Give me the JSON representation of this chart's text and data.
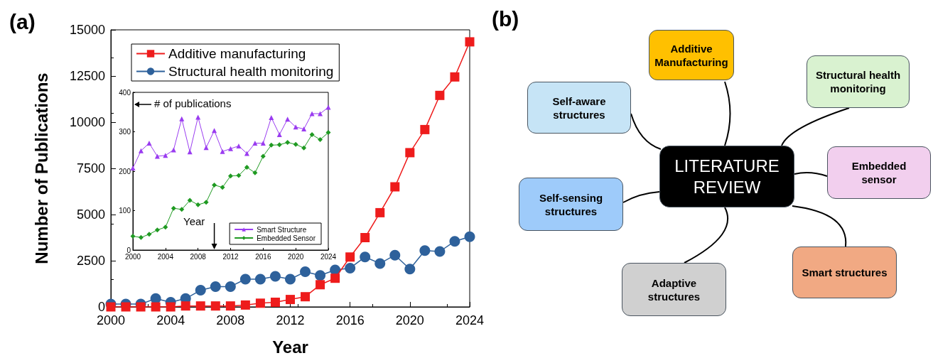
{
  "chart_data": [
    {
      "type": "line",
      "title": "(a)",
      "xlabel": "Year",
      "ylabel": "Number of Publications",
      "x": [
        2000,
        2001,
        2002,
        2003,
        2004,
        2005,
        2006,
        2007,
        2008,
        2009,
        2010,
        2011,
        2012,
        2013,
        2014,
        2015,
        2016,
        2017,
        2018,
        2019,
        2020,
        2021,
        2022,
        2023,
        2024
      ],
      "series": [
        {
          "name": "Additive manufacturing",
          "color": "#ee1c1c",
          "marker": "square",
          "values": [
            0,
            0,
            0,
            0,
            0,
            50,
            50,
            50,
            50,
            100,
            200,
            250,
            400,
            550,
            1200,
            1550,
            2700,
            3750,
            5100,
            6500,
            8350,
            9600,
            11450,
            12450,
            14350
          ]
        },
        {
          "name": "Structural health monitoring",
          "color": "#2e619b",
          "marker": "circle",
          "values": [
            150,
            150,
            150,
            450,
            250,
            450,
            900,
            1100,
            1100,
            1500,
            1500,
            1650,
            1500,
            1900,
            1700,
            2000,
            2100,
            2700,
            2350,
            2800,
            2050,
            3050,
            3000,
            3550,
            3800
          ]
        }
      ],
      "xlim": [
        2000,
        2024
      ],
      "xticks": [
        2000,
        2004,
        2008,
        2012,
        2016,
        2020,
        2024
      ],
      "ylim": [
        0,
        15000
      ],
      "yticks": [
        0,
        2500,
        5000,
        7500,
        10000,
        12500,
        15000
      ],
      "grid": false,
      "legend": "top left",
      "line_style": "solid"
    },
    {
      "type": "line",
      "xlabel": "Year",
      "ylabel": "# of publications",
      "x": [
        2000,
        2001,
        2002,
        2003,
        2004,
        2005,
        2006,
        2007,
        2008,
        2009,
        2010,
        2011,
        2012,
        2013,
        2014,
        2015,
        2016,
        2017,
        2018,
        2019,
        2020,
        2021,
        2022,
        2023,
        2024
      ],
      "series": [
        {
          "name": "Smart Structure",
          "color": "#9a3cf0",
          "marker": "triangle",
          "values": [
            208,
            252,
            271,
            238,
            240,
            254,
            333,
            249,
            337,
            260,
            303,
            250,
            257,
            264,
            245,
            271,
            271,
            336,
            293,
            332,
            312,
            307,
            346,
            346,
            362
          ]
        },
        {
          "name": "Embedded Sensor",
          "color": "#1f9a22",
          "marker": "diamond",
          "values": [
            35,
            32,
            40,
            51,
            58,
            106,
            103,
            126,
            115,
            121,
            165,
            159,
            188,
            189,
            210,
            196,
            238,
            266,
            267,
            273,
            268,
            259,
            293,
            280,
            298
          ]
        }
      ],
      "xlim": [
        2000,
        2024
      ],
      "xticks": [
        2000,
        2004,
        2008,
        2012,
        2016,
        2020,
        2024
      ],
      "ylim": [
        0,
        400
      ],
      "yticks": [
        0,
        100,
        200,
        300,
        400
      ],
      "grid": false,
      "legend": "bottom right",
      "line_style": "solid"
    },
    {
      "type": "other",
      "title": "(b)",
      "annotations": [
        "Additive Manufacturing",
        "Structural health monitoring",
        "Self-aware structures",
        "LITERATURE REVIEW",
        "Embedded sensor",
        "Self-sensing structures",
        "Smart structures",
        "Adaptive structures"
      ],
      "colors": [
        "#ffc000",
        "#d9f2d0",
        "#c6e4f6",
        "#000000",
        "#f2cfee",
        "#9ecbfa",
        "#f1a983",
        "#d0d0d0"
      ]
    }
  ]
}
